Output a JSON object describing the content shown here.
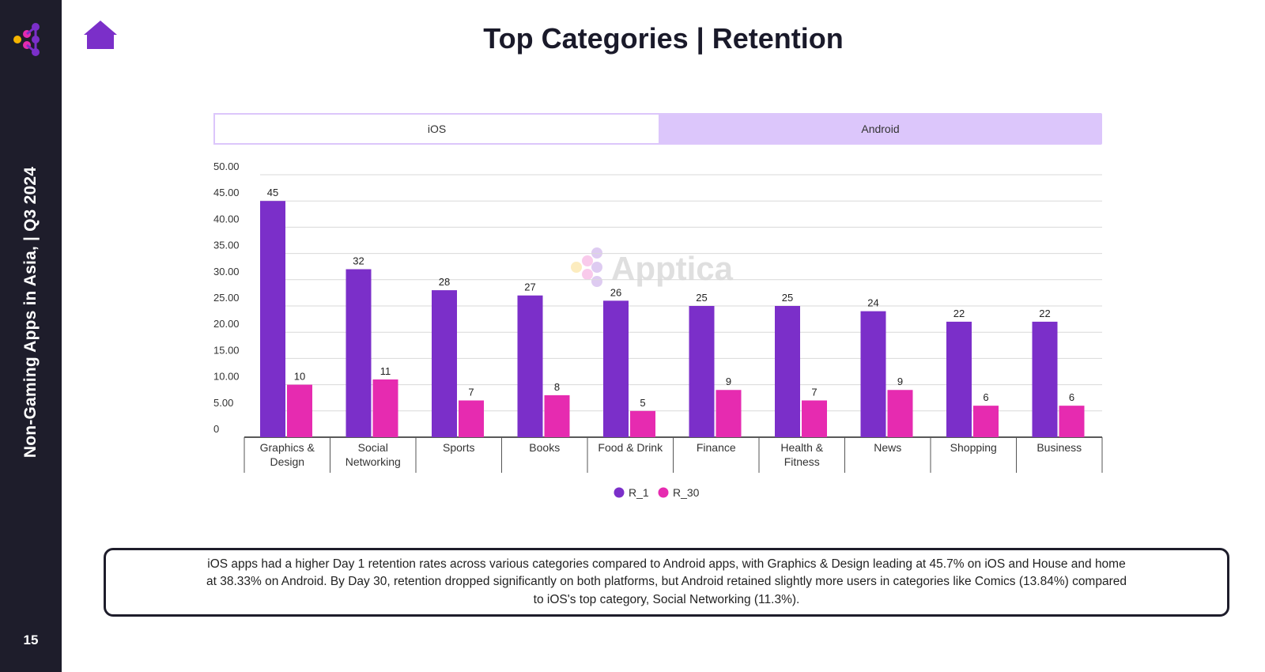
{
  "sidebar": {
    "vertical_text": "Non-Gaming Apps in Asia, | Q3 2024",
    "page_number": "15"
  },
  "page": {
    "title": "Top Categories | Retention"
  },
  "tabs": [
    {
      "label": "iOS",
      "active": true
    },
    {
      "label": "Android",
      "active": false
    }
  ],
  "watermark": {
    "text": "Apptica"
  },
  "colors": {
    "r1": "#7b2fc9",
    "r30": "#e62bb0",
    "sidebar_bg": "#1e1d2b",
    "tab_inactive": "#dcc6fb",
    "home_icon": "#7b2fc9"
  },
  "chart_data": {
    "type": "bar",
    "title": "",
    "xlabel": "",
    "ylabel": "",
    "ylim": [
      0,
      50
    ],
    "y_ticks": [
      "0",
      "5.00",
      "10.00",
      "15.00",
      "20.00",
      "25.00",
      "30.00",
      "35.00",
      "40.00",
      "45.00",
      "50.00"
    ],
    "categories": [
      "Graphics & Design",
      "Social Networking",
      "Sports",
      "Books",
      "Food & Drink",
      "Finance",
      "Health & Fitness",
      "News",
      "Shopping",
      "Business"
    ],
    "category_lines": [
      [
        "Graphics &",
        "Design"
      ],
      [
        "Social",
        "Networking"
      ],
      [
        "Sports"
      ],
      [
        "Books"
      ],
      [
        "Food & Drink"
      ],
      [
        "Finance"
      ],
      [
        "Health &",
        "Fitness"
      ],
      [
        "News"
      ],
      [
        "Shopping"
      ],
      [
        "Business"
      ]
    ],
    "series": [
      {
        "name": "R_1",
        "values": [
          45,
          32,
          28,
          27,
          26,
          25,
          25,
          24,
          22,
          22
        ]
      },
      {
        "name": "R_30",
        "values": [
          10,
          11,
          7,
          8,
          5,
          9,
          7,
          9,
          6,
          6
        ]
      }
    ],
    "grid": true,
    "legend": "bottom-center"
  },
  "summary": {
    "text": "iOS apps had a higher Day 1 retention rates across various categories compared to Android apps, with Graphics & Design leading at 45.7% on iOS and House and home at 38.33% on Android. By Day 30, retention dropped significantly on both platforms, but Android retained slightly more users in categories like Comics (13.84%) compared to iOS's top category, Social Networking (11.3%)."
  }
}
